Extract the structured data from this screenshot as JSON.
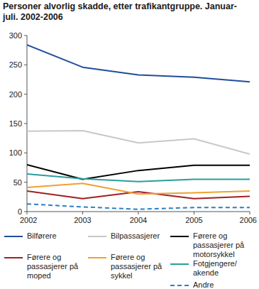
{
  "chart_data": {
    "type": "line",
    "title": "Personer alvorlig skadde, etter trafikantgruppe. Januar-juli. 2002-2006",
    "x": [
      2002,
      2003,
      2004,
      2005,
      2006
    ],
    "xlim": [
      2002,
      2006
    ],
    "xticks": [
      2002,
      2003,
      2004,
      2005,
      2006
    ],
    "ylim": [
      0,
      300
    ],
    "yticks": [
      0,
      50,
      100,
      150,
      200,
      250,
      300
    ],
    "grid": false,
    "legend": "bottom",
    "series": [
      {
        "name": "Bilførere",
        "color": "#1f4e9c",
        "line_style": "solid",
        "values": [
          284,
          246,
          233,
          229,
          221
        ]
      },
      {
        "name": "Bilpassasjerer",
        "color": "#c8c8c8",
        "line_style": "solid",
        "values": [
          137,
          138,
          117,
          124,
          98
        ]
      },
      {
        "name": "Førere og passasjerer på motorsykkel",
        "color": "#000000",
        "line_style": "solid",
        "values": [
          80,
          55,
          70,
          79,
          79
        ]
      },
      {
        "name": "Førere og passasjerer på moped",
        "color": "#a31f22",
        "line_style": "solid",
        "values": [
          35,
          22,
          34,
          22,
          26
        ]
      },
      {
        "name": "Førere og passasjerer på sykkel",
        "color": "#f0a030",
        "line_style": "solid",
        "values": [
          41,
          48,
          30,
          32,
          35
        ]
      },
      {
        "name": "Fotgjengere/ akende",
        "color": "#2a9d9b",
        "line_style": "solid",
        "values": [
          64,
          56,
          51,
          55,
          55
        ]
      },
      {
        "name": "Andre",
        "color": "#2a7fc2",
        "line_style": "dashed",
        "values": [
          13,
          8,
          4,
          7,
          7
        ]
      }
    ]
  }
}
